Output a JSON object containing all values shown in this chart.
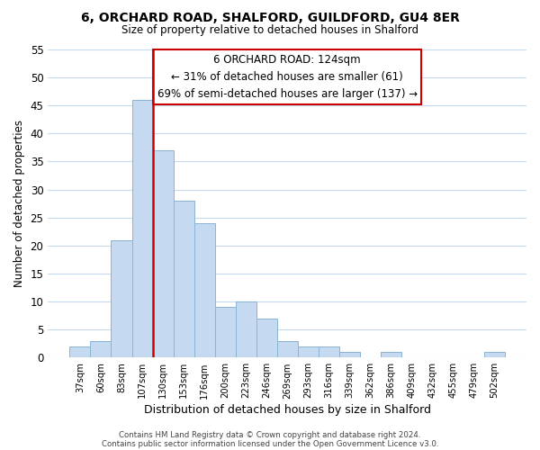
{
  "title_line1": "6, ORCHARD ROAD, SHALFORD, GUILDFORD, GU4 8ER",
  "title_line2": "Size of property relative to detached houses in Shalford",
  "xlabel": "Distribution of detached houses by size in Shalford",
  "ylabel": "Number of detached properties",
  "bar_labels": [
    "37sqm",
    "60sqm",
    "83sqm",
    "107sqm",
    "130sqm",
    "153sqm",
    "176sqm",
    "200sqm",
    "223sqm",
    "246sqm",
    "269sqm",
    "293sqm",
    "316sqm",
    "339sqm",
    "362sqm",
    "386sqm",
    "409sqm",
    "432sqm",
    "455sqm",
    "479sqm",
    "502sqm"
  ],
  "bar_values": [
    2,
    3,
    21,
    46,
    37,
    28,
    24,
    9,
    10,
    7,
    3,
    2,
    2,
    1,
    0,
    1,
    0,
    0,
    0,
    0,
    1
  ],
  "bar_color": "#c5d9f1",
  "bar_edge_color": "#8ab4d4",
  "vline_color": "#cc0000",
  "vline_bar_index": 3,
  "ylim": [
    0,
    55
  ],
  "yticks": [
    0,
    5,
    10,
    15,
    20,
    25,
    30,
    35,
    40,
    45,
    50,
    55
  ],
  "annotation_title": "6 ORCHARD ROAD: 124sqm",
  "annotation_line1": "← 31% of detached houses are smaller (61)",
  "annotation_line2": "69% of semi-detached houses are larger (137) →",
  "footer_line1": "Contains HM Land Registry data © Crown copyright and database right 2024.",
  "footer_line2": "Contains public sector information licensed under the Open Government Licence v3.0.",
  "background_color": "#ffffff",
  "grid_color": "#c5d9f1"
}
